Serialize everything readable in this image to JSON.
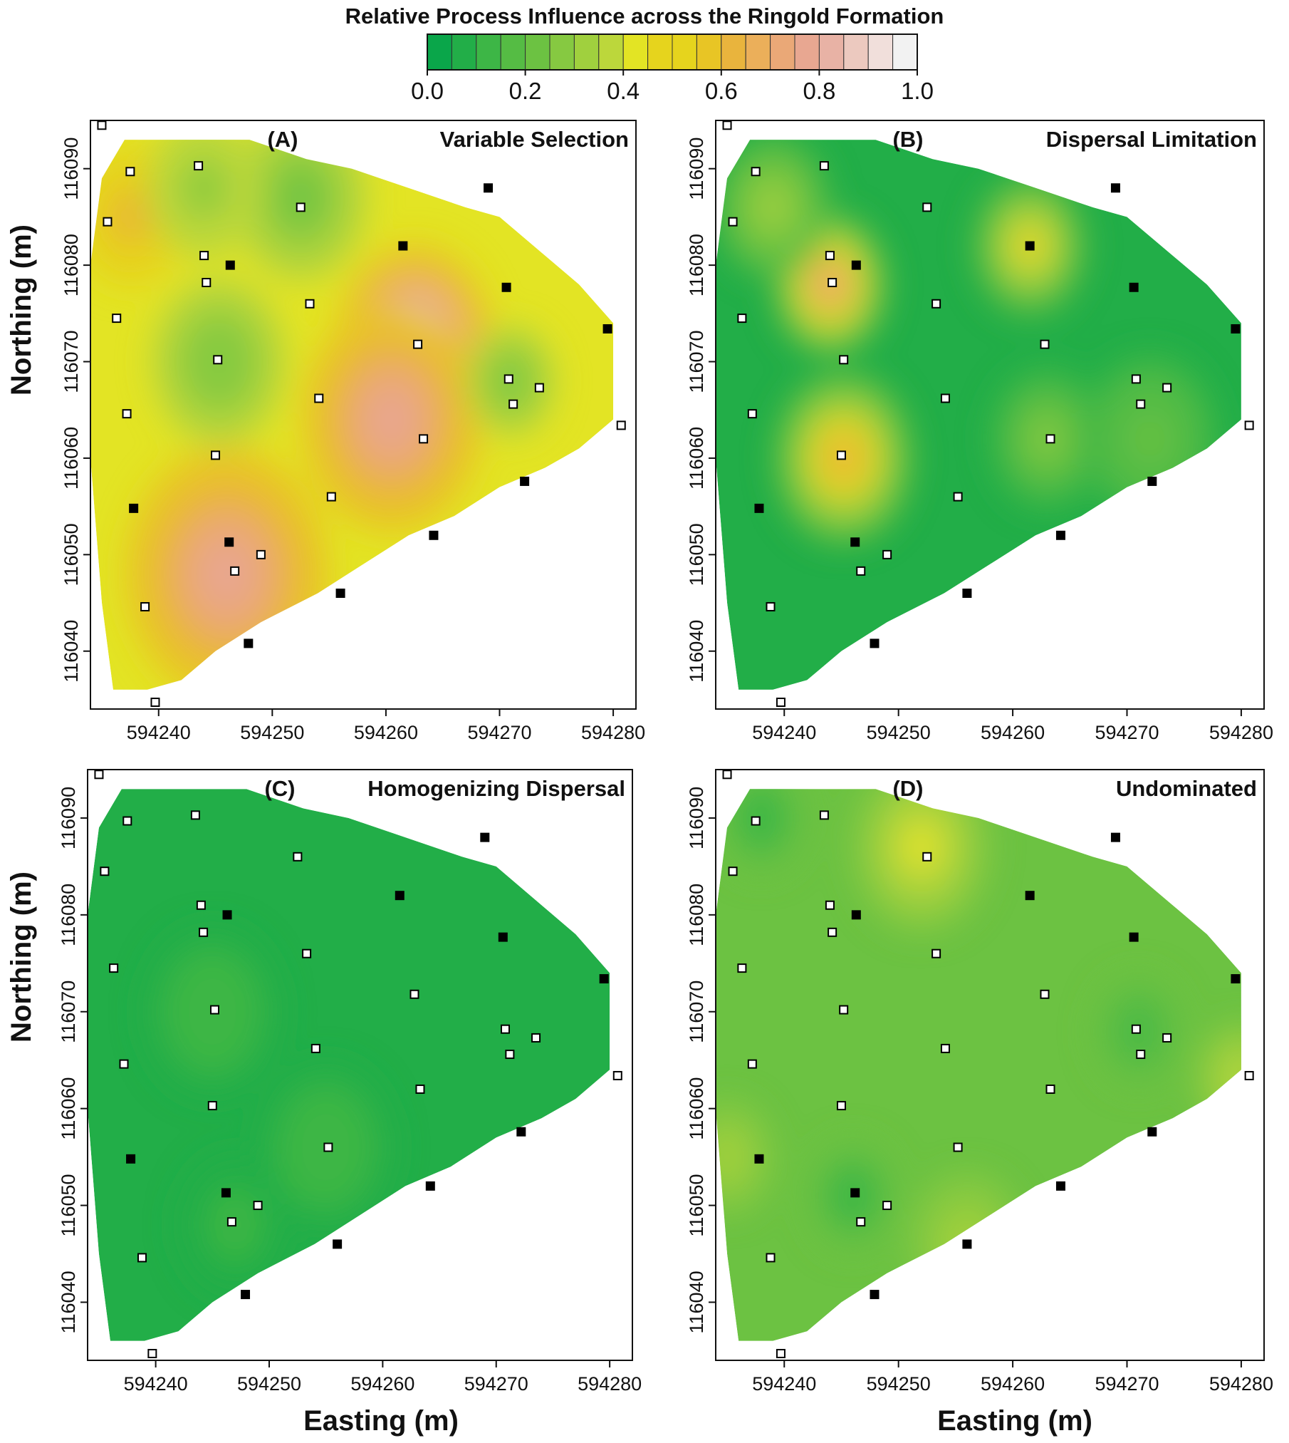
{
  "chart_data": {
    "type": "heatmap",
    "title": "Relative Process Influence across the Ringold Formation",
    "colorbar": {
      "min": 0.0,
      "max": 1.0,
      "step": 0.05,
      "ticks": [
        "0.0",
        "0.2",
        "0.4",
        "0.6",
        "0.8",
        "1.0"
      ],
      "tick_values": [
        0.0,
        0.2,
        0.4,
        0.6,
        0.8,
        1.0
      ],
      "colors": [
        "#0aa64a",
        "#22ae48",
        "#3db646",
        "#55bc44",
        "#6cc242",
        "#86c941",
        "#a0d03e",
        "#bcd73b",
        "#e3e424",
        "#e6d41d",
        "#e8c525",
        "#e9b43d",
        "#ebaf5a",
        "#eaa877",
        "#e8a791",
        "#e8b2a5",
        "#ecc9bf",
        "#f1dfdb",
        "#f2f2f2"
      ]
    },
    "xlabel": "Easting (m)",
    "ylabel": "Northing (m)",
    "x_ticks": [
      594240,
      594250,
      594260,
      594270,
      594280
    ],
    "x_tick_labels": [
      "594240",
      "594250",
      "594260",
      "594270",
      "594280"
    ],
    "y_ticks": [
      116040,
      116050,
      116060,
      116070,
      116080,
      116090
    ],
    "y_tick_labels": [
      "116040",
      "116050",
      "116060",
      "116070",
      "116080",
      "116090"
    ],
    "xlim": [
      594234,
      594282
    ],
    "ylim": [
      116034,
      116095
    ],
    "boundary": [
      [
        594237.0,
        116093.0
      ],
      [
        594248,
        116093
      ],
      [
        594253,
        116091
      ],
      [
        594257,
        116090
      ],
      [
        594262,
        116088
      ],
      [
        594267,
        116086
      ],
      [
        594270,
        116085
      ],
      [
        594277,
        116078
      ],
      [
        594280,
        116074
      ],
      [
        594280,
        116064
      ],
      [
        594277,
        116061
      ],
      [
        594274,
        116059
      ],
      [
        594270,
        116057
      ],
      [
        594266,
        116054
      ],
      [
        594262,
        116052
      ],
      [
        594258,
        116049
      ],
      [
        594254,
        116046
      ],
      [
        594249,
        116043
      ],
      [
        594245,
        116040
      ],
      [
        594242,
        116037
      ],
      [
        594239,
        116036
      ],
      [
        594236,
        116036
      ],
      [
        594235,
        116045
      ],
      [
        594234,
        116060
      ],
      [
        594234,
        116072
      ],
      [
        594234,
        116080
      ],
      [
        594235,
        116089
      ]
    ],
    "sites": [
      {
        "x": 594235,
        "y": 116094.5,
        "filled": false
      },
      {
        "x": 594235.5,
        "y": 116084.5,
        "filled": false
      },
      {
        "x": 594237.5,
        "y": 116089.7,
        "filled": false
      },
      {
        "x": 594243.5,
        "y": 116090.3,
        "filled": false
      },
      {
        "x": 594252.5,
        "y": 116086.0,
        "filled": false
      },
      {
        "x": 594269.0,
        "y": 116088.0,
        "filled": true
      },
      {
        "x": 594261.5,
        "y": 116082.0,
        "filled": true
      },
      {
        "x": 594244.0,
        "y": 116081.0,
        "filled": false
      },
      {
        "x": 594246.3,
        "y": 116080.0,
        "filled": true
      },
      {
        "x": 594244.2,
        "y": 116078.2,
        "filled": false
      },
      {
        "x": 594270.6,
        "y": 116077.7,
        "filled": true
      },
      {
        "x": 594253.3,
        "y": 116076.0,
        "filled": false
      },
      {
        "x": 594236.3,
        "y": 116074.5,
        "filled": false
      },
      {
        "x": 594279.5,
        "y": 116073.4,
        "filled": true
      },
      {
        "x": 594262.8,
        "y": 116071.8,
        "filled": false
      },
      {
        "x": 594245.2,
        "y": 116070.2,
        "filled": false
      },
      {
        "x": 594270.8,
        "y": 116068.2,
        "filled": false
      },
      {
        "x": 594273.5,
        "y": 116067.3,
        "filled": false
      },
      {
        "x": 594254.1,
        "y": 116066.2,
        "filled": false
      },
      {
        "x": 594271.2,
        "y": 116065.6,
        "filled": false
      },
      {
        "x": 594237.2,
        "y": 116064.6,
        "filled": false
      },
      {
        "x": 594280.7,
        "y": 116063.4,
        "filled": false
      },
      {
        "x": 594263.3,
        "y": 116062.0,
        "filled": false
      },
      {
        "x": 594245.0,
        "y": 116060.3,
        "filled": false
      },
      {
        "x": 594272.2,
        "y": 116057.6,
        "filled": true
      },
      {
        "x": 594255.2,
        "y": 116056.0,
        "filled": false
      },
      {
        "x": 594237.8,
        "y": 116054.8,
        "filled": true
      },
      {
        "x": 594264.2,
        "y": 116052.0,
        "filled": true
      },
      {
        "x": 594246.2,
        "y": 116051.3,
        "filled": true
      },
      {
        "x": 594249.0,
        "y": 116050.0,
        "filled": false
      },
      {
        "x": 594246.7,
        "y": 116048.3,
        "filled": false
      },
      {
        "x": 594256.0,
        "y": 116046.0,
        "filled": true
      },
      {
        "x": 594238.8,
        "y": 116044.6,
        "filled": false
      },
      {
        "x": 594247.9,
        "y": 116040.8,
        "filled": true
      },
      {
        "x": 594239.7,
        "y": 116034.7,
        "filled": false
      }
    ],
    "panels": [
      {
        "label": "(A)",
        "name": "Variable Selection",
        "base_value": 0.45,
        "hotspots": [
          {
            "x": 594262.5,
            "y": 116072,
            "value": 0.93,
            "radius": 7
          },
          {
            "x": 594260.5,
            "y": 116064,
            "value": 0.78,
            "radius": 8
          },
          {
            "x": 594246,
            "y": 116048,
            "value": 0.8,
            "radius": 9
          },
          {
            "x": 594237.5,
            "y": 116085,
            "value": 0.6,
            "radius": 5
          },
          {
            "x": 594245.3,
            "y": 116070,
            "value": 0.25,
            "radius": 6
          },
          {
            "x": 594252.5,
            "y": 116087,
            "value": 0.22,
            "radius": 6
          },
          {
            "x": 594271,
            "y": 116068,
            "value": 0.25,
            "radius": 4
          },
          {
            "x": 594244,
            "y": 116088,
            "value": 0.28,
            "radius": 5
          }
        ]
      },
      {
        "label": "(B)",
        "name": "Dispersal Limitation",
        "base_value": 0.08,
        "hotspots": [
          {
            "x": 594244,
            "y": 116078,
            "value": 0.7,
            "radius": 5
          },
          {
            "x": 594245.2,
            "y": 116060,
            "value": 0.62,
            "radius": 6
          },
          {
            "x": 594261.5,
            "y": 116082,
            "value": 0.52,
            "radius": 5
          },
          {
            "x": 594239,
            "y": 116086,
            "value": 0.32,
            "radius": 5
          },
          {
            "x": 594263,
            "y": 116062,
            "value": 0.28,
            "radius": 5
          },
          {
            "x": 594272,
            "y": 116062,
            "value": 0.2,
            "radius": 6
          }
        ]
      },
      {
        "label": "(C)",
        "name": "Homogenizing Dispersal",
        "base_value": 0.05,
        "hotspots": [
          {
            "x": 594245,
            "y": 116070,
            "value": 0.13,
            "radius": 6
          },
          {
            "x": 594255,
            "y": 116056,
            "value": 0.12,
            "radius": 6
          },
          {
            "x": 594247,
            "y": 116048,
            "value": 0.11,
            "radius": 5
          }
        ]
      },
      {
        "label": "(D)",
        "name": "Undominated",
        "base_value": 0.24,
        "hotspots": [
          {
            "x": 594252,
            "y": 116087,
            "value": 0.45,
            "radius": 6
          },
          {
            "x": 594280,
            "y": 116063,
            "value": 0.4,
            "radius": 4
          },
          {
            "x": 594256,
            "y": 116046,
            "value": 0.36,
            "radius": 5
          },
          {
            "x": 594235,
            "y": 116055,
            "value": 0.34,
            "radius": 4
          },
          {
            "x": 594238,
            "y": 116090,
            "value": 0.1,
            "radius": 4
          },
          {
            "x": 594246,
            "y": 116051,
            "value": 0.1,
            "radius": 4
          },
          {
            "x": 594271,
            "y": 116068,
            "value": 0.12,
            "radius": 4
          }
        ]
      }
    ]
  }
}
